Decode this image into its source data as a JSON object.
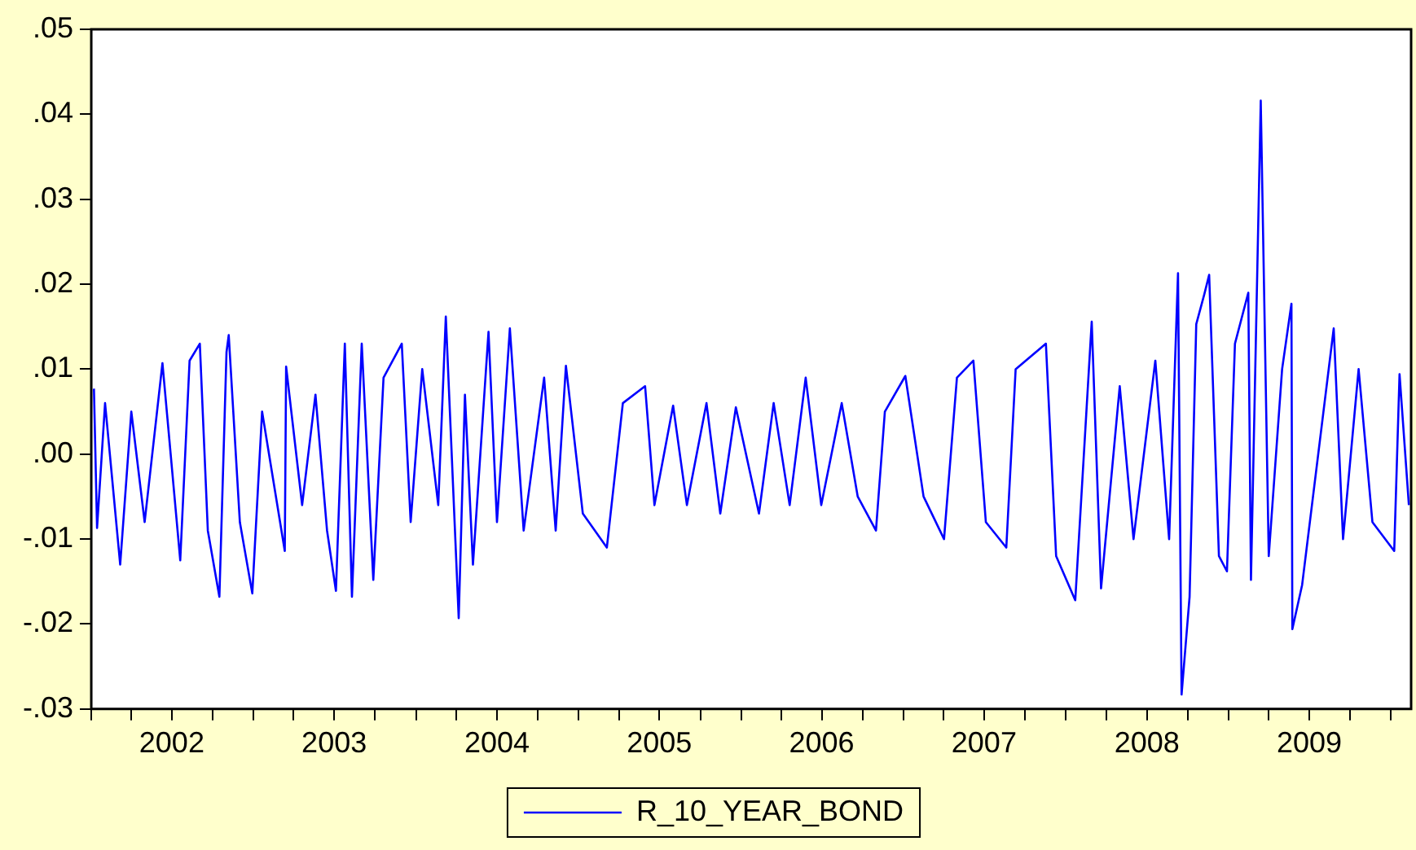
{
  "chart_data": {
    "type": "line",
    "line_style": "solid",
    "marker": "none",
    "grid": false,
    "legend": "bottom",
    "xlim": [
      "2002-01-01",
      "2010-02-15"
    ],
    "xticks": [
      {
        "value": "2002-01-01",
        "label": null
      },
      {
        "value": "2002-04-01",
        "label": null
      },
      {
        "value": "2002-07-01",
        "label": "2002"
      },
      {
        "value": "2002-10-01",
        "label": null
      },
      {
        "value": "2003-01-01",
        "label": null
      },
      {
        "value": "2003-04-01",
        "label": null
      },
      {
        "value": "2003-07-01",
        "label": "2003"
      },
      {
        "value": "2003-10-01",
        "label": null
      },
      {
        "value": "2004-01-01",
        "label": null
      },
      {
        "value": "2004-04-01",
        "label": null
      },
      {
        "value": "2004-07-01",
        "label": "2004"
      },
      {
        "value": "2004-10-01",
        "label": null
      },
      {
        "value": "2005-01-01",
        "label": null
      },
      {
        "value": "2005-04-01",
        "label": null
      },
      {
        "value": "2005-07-01",
        "label": "2005"
      },
      {
        "value": "2005-10-01",
        "label": null
      },
      {
        "value": "2006-01-01",
        "label": null
      },
      {
        "value": "2006-04-01",
        "label": null
      },
      {
        "value": "2006-07-01",
        "label": "2006"
      },
      {
        "value": "2006-10-01",
        "label": null
      },
      {
        "value": "2007-01-01",
        "label": null
      },
      {
        "value": "2007-04-01",
        "label": null
      },
      {
        "value": "2007-07-01",
        "label": "2007"
      },
      {
        "value": "2007-10-01",
        "label": null
      },
      {
        "value": "2008-01-01",
        "label": null
      },
      {
        "value": "2008-04-01",
        "label": null
      },
      {
        "value": "2008-07-01",
        "label": "2008"
      },
      {
        "value": "2008-10-01",
        "label": null
      },
      {
        "value": "2009-01-01",
        "label": null
      },
      {
        "value": "2009-04-01",
        "label": null
      },
      {
        "value": "2009-07-01",
        "label": "2009"
      },
      {
        "value": "2009-10-01",
        "label": null
      },
      {
        "value": "2010-01-01",
        "label": null
      }
    ],
    "ylim": [
      -0.03,
      0.05
    ],
    "yticks": [
      {
        "value": -0.03,
        "label": "-.03"
      },
      {
        "value": -0.02,
        "label": "-.02"
      },
      {
        "value": -0.01,
        "label": "-.01"
      },
      {
        "value": 0,
        "label": ".00"
      },
      {
        "value": 0.01,
        "label": ".01"
      },
      {
        "value": 0.02,
        "label": ".02"
      },
      {
        "value": 0.03,
        "label": ".03"
      },
      {
        "value": 0.04,
        "label": ".04"
      },
      {
        "value": 0.05,
        "label": ".05"
      }
    ],
    "x": [
      "2002-01-07",
      "2002-01-14",
      "2002-02-01",
      "2002-03-07",
      "2002-04-01",
      "2002-05-01",
      "2002-06-10",
      "2002-07-20",
      "2002-08-10",
      "2002-09-02",
      "2002-09-20",
      "2002-10-16",
      "2002-11-01",
      "2002-11-06",
      "2002-12-01",
      "2002-12-29",
      "2003-01-20",
      "2003-03-12",
      "2003-03-15",
      "2003-04-20",
      "2003-05-20",
      "2003-06-15",
      "2003-07-05",
      "2003-07-25",
      "2003-08-10",
      "2003-09-01",
      "2003-09-27",
      "2003-10-20",
      "2003-11-30",
      "2003-12-20",
      "2004-01-15",
      "2004-02-20",
      "2004-03-08",
      "2004-04-06",
      "2004-04-20",
      "2004-05-08",
      "2004-06-12",
      "2004-07-01",
      "2004-07-30",
      "2004-08-30",
      "2004-10-15",
      "2004-11-10",
      "2004-12-03",
      "2005-01-10",
      "2005-03-05",
      "2005-04-10",
      "2005-05-30",
      "2005-06-20",
      "2005-08-01",
      "2005-09-01",
      "2005-10-15",
      "2005-11-15",
      "2005-12-20",
      "2006-02-10",
      "2006-03-15",
      "2006-04-20",
      "2006-05-26",
      "2006-06-30",
      "2006-08-15",
      "2006-09-20",
      "2006-10-31",
      "2006-11-20",
      "2007-01-05",
      "2007-02-15",
      "2007-04-02",
      "2007-05-01",
      "2007-06-07",
      "2007-07-05",
      "2007-08-20",
      "2007-09-10",
      "2007-11-17",
      "2007-12-10",
      "2008-01-22",
      "2008-02-28",
      "2008-03-20",
      "2008-05-01",
      "2008-06-01",
      "2008-07-20",
      "2008-08-20",
      "2008-09-09",
      "2008-09-17",
      "2008-10-05",
      "2008-10-20",
      "2008-11-07",
      "2008-11-18",
      "2008-12-10",
      "2008-12-28",
      "2009-01-15",
      "2009-02-14",
      "2009-02-20",
      "2009-03-14",
      "2009-04-01",
      "2009-05-01",
      "2009-05-22",
      "2009-05-24",
      "2009-06-15",
      "2009-08-25",
      "2009-09-15",
      "2009-10-20",
      "2009-11-20",
      "2010-01-08",
      "2010-01-20",
      "2010-02-10"
    ],
    "series": [
      {
        "name": "R_10_YEAR_BOND",
        "color": "#0000ff",
        "values": [
          0.0077,
          -0.0087,
          0.006,
          -0.013,
          0.005,
          -0.008,
          0.0107,
          -0.0125,
          0.011,
          0.013,
          -0.009,
          -0.0168,
          0.012,
          0.014,
          -0.008,
          -0.0164,
          0.005,
          -0.0114,
          0.0103,
          -0.006,
          0.007,
          -0.009,
          -0.0161,
          0.013,
          -0.0168,
          0.013,
          -0.0148,
          0.009,
          0.013,
          -0.008,
          0.01,
          -0.006,
          0.0162,
          -0.0193,
          0.007,
          -0.013,
          0.0144,
          -0.008,
          0.0148,
          -0.009,
          0.009,
          -0.009,
          0.0104,
          -0.007,
          -0.011,
          0.006,
          0.008,
          -0.006,
          0.0057,
          -0.006,
          0.006,
          -0.007,
          0.0055,
          -0.007,
          0.006,
          -0.006,
          0.009,
          -0.006,
          0.006,
          -0.005,
          -0.009,
          0.005,
          0.0092,
          -0.005,
          -0.01,
          0.009,
          0.011,
          -0.008,
          -0.011,
          0.01,
          0.013,
          -0.012,
          -0.0172,
          0.0156,
          -0.0158,
          0.008,
          -0.01,
          0.011,
          -0.01,
          0.0213,
          -0.0283,
          -0.0168,
          0.0153,
          0.0188,
          0.0211,
          -0.012,
          -0.0138,
          0.013,
          0.019,
          -0.0148,
          0.0416,
          -0.012,
          0.01,
          0.0177,
          -0.0206,
          -0.0154,
          0.0148,
          -0.01,
          0.01,
          -0.008,
          -0.0114,
          0.0094,
          -0.006
        ]
      }
    ]
  }
}
